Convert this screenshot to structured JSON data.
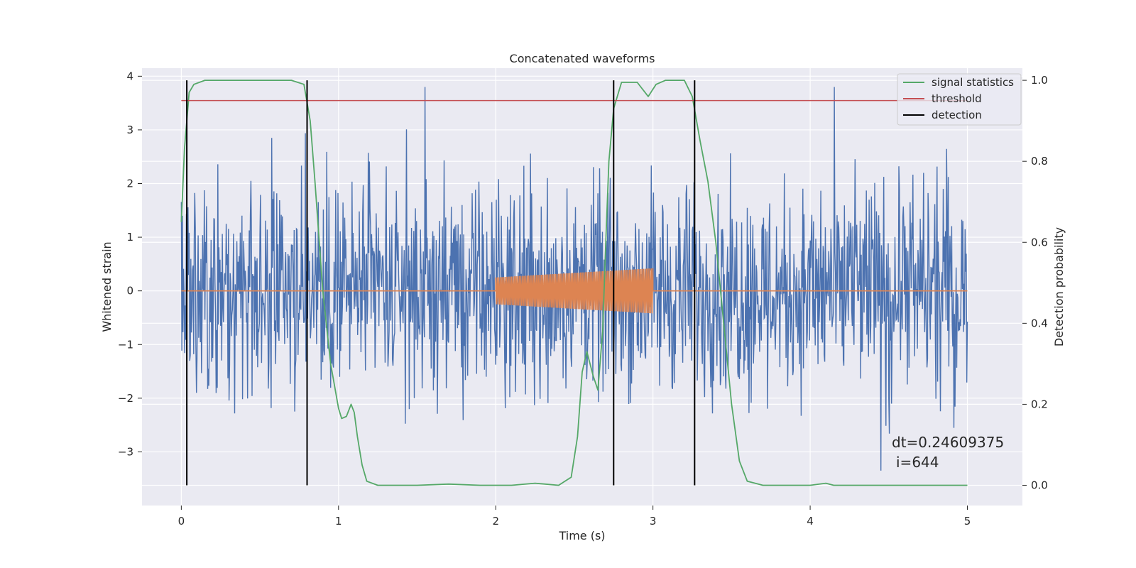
{
  "chart_data": {
    "type": "line",
    "title": "Concatenated waveforms",
    "xlabel": "Time (s)",
    "ylabel": "Whitened strain",
    "y2label": "Detection probability",
    "xlim": [
      -0.25,
      5.35
    ],
    "ylim": [
      -4.0,
      4.15
    ],
    "y2lim": [
      -0.05,
      1.03
    ],
    "xticks": [
      0,
      1,
      2,
      3,
      4,
      5
    ],
    "yticks": [
      -3,
      -2,
      -1,
      0,
      1,
      2,
      3,
      4
    ],
    "y2ticks": [
      0.0,
      0.2,
      0.4,
      0.6,
      0.8,
      1.0
    ],
    "xtick_labels": [
      "0",
      "1",
      "2",
      "3",
      "4",
      "5"
    ],
    "ytick_labels": [
      "−3",
      "−2",
      "−1",
      "0",
      "1",
      "2",
      "3",
      "4"
    ],
    "y2tick_labels": [
      "0.0",
      "0.2",
      "0.4",
      "0.6",
      "0.8",
      "1.0"
    ],
    "grid": true,
    "legend_position": "top-right",
    "legend": [
      {
        "label": "signal statistics",
        "color": "#55a868"
      },
      {
        "label": "threshold",
        "color": "#c44e52"
      },
      {
        "label": "detection",
        "color": "#000000"
      }
    ],
    "colors": {
      "strain": "#4c72b0",
      "injected_signal": "#dd8452",
      "signal_statistics": "#55a868",
      "threshold": "#c44e52",
      "detection": "#000000",
      "background": "#eaeaf2",
      "grid": "#ffffff"
    },
    "strain": {
      "x_range": [
        0,
        5
      ],
      "approx_abs_max": 3.8,
      "approx_min": -3.6
    },
    "injected_signal": {
      "x_start": 2.0,
      "x_end": 3.0,
      "amp_start": 0.25,
      "amp_end": 0.42,
      "before_after_value": 0
    },
    "threshold": {
      "y2": 0.95,
      "x_range": [
        0,
        5
      ]
    },
    "detections_x": [
      0.035,
      0.8,
      2.75,
      3.265
    ],
    "signal_statistics": {
      "x": [
        0,
        0.02,
        0.05,
        0.08,
        0.15,
        0.4,
        0.7,
        0.78,
        0.82,
        0.85,
        0.9,
        0.95,
        1.0,
        1.02,
        1.05,
        1.08,
        1.1,
        1.12,
        1.15,
        1.18,
        1.25,
        1.5,
        1.7,
        1.9,
        2.1,
        2.25,
        2.4,
        2.48,
        2.52,
        2.55,
        2.58,
        2.62,
        2.65,
        2.68,
        2.7,
        2.72,
        2.75,
        2.8,
        2.9,
        2.97,
        3.02,
        3.08,
        3.2,
        3.25,
        3.3,
        3.35,
        3.4,
        3.45,
        3.5,
        3.55,
        3.6,
        3.7,
        4.0,
        4.1,
        4.15,
        4.3,
        4.6,
        5.0
      ],
      "y": [
        0.65,
        0.83,
        0.97,
        0.99,
        1.0,
        1.0,
        1.0,
        0.99,
        0.9,
        0.75,
        0.48,
        0.3,
        0.19,
        0.165,
        0.17,
        0.2,
        0.18,
        0.12,
        0.05,
        0.01,
        0.0,
        0.0,
        0.003,
        0.0,
        0.0,
        0.005,
        0.0,
        0.02,
        0.12,
        0.28,
        0.33,
        0.27,
        0.235,
        0.38,
        0.6,
        0.8,
        0.93,
        0.995,
        0.995,
        0.96,
        0.99,
        1.0,
        1.0,
        0.96,
        0.85,
        0.75,
        0.6,
        0.4,
        0.2,
        0.06,
        0.01,
        0.0,
        0.0,
        0.005,
        0.0,
        0.0,
        0.0,
        0.0
      ]
    },
    "annotations": [
      "dt=0.24609375",
      "i=644"
    ]
  }
}
